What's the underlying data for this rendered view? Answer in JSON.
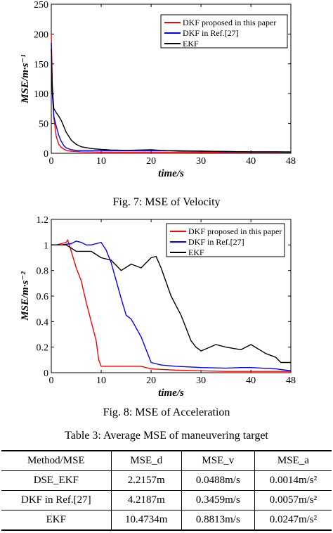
{
  "chart_data": [
    {
      "type": "line",
      "title": "",
      "xlabel": "time/s",
      "ylabel": "MSE/m·s⁻¹",
      "xlim": [
        0,
        48
      ],
      "ylim": [
        0,
        250
      ],
      "xticks": [
        0,
        10,
        20,
        30,
        40,
        48
      ],
      "yticks": [
        0,
        50,
        100,
        150,
        200,
        250
      ],
      "grid": false,
      "legend_position": "top-right",
      "series": [
        {
          "name": "DKF proposed in this paper",
          "color": "#ff0000",
          "x": [
            0,
            0.2,
            0.5,
            1,
            1.5,
            2,
            2.5,
            3,
            4,
            5,
            6,
            8,
            10,
            15,
            20,
            25,
            30,
            35,
            40,
            48
          ],
          "y": [
            200,
            120,
            60,
            28,
            15,
            10,
            7,
            5,
            3.5,
            3,
            2.5,
            2.2,
            2,
            2,
            2,
            2,
            1.8,
            1.8,
            1.8,
            1.8
          ]
        },
        {
          "name": "DKF in Ref.[27]",
          "color": "#0000ff",
          "x": [
            0,
            0.2,
            0.5,
            1,
            1.5,
            2,
            2.5,
            3,
            4,
            5,
            6,
            8,
            10,
            15,
            20,
            25,
            30,
            35,
            40,
            48
          ],
          "y": [
            185,
            100,
            62,
            45,
            30,
            20,
            13,
            9,
            6,
            5,
            4.5,
            4.5,
            4.5,
            4.5,
            4.5,
            4.5,
            3.5,
            3,
            2.5,
            2.5
          ]
        },
        {
          "name": "EKF",
          "color": "#000000",
          "x": [
            0,
            0.2,
            0.5,
            1,
            1.5,
            2,
            2.5,
            3,
            4,
            5,
            6,
            8,
            10,
            12,
            15,
            18,
            20,
            22,
            25,
            30,
            35,
            40,
            45,
            48
          ],
          "y": [
            175,
            110,
            75,
            68,
            62,
            55,
            45,
            35,
            22,
            15,
            11,
            8,
            6.5,
            5.5,
            5,
            5.5,
            6,
            5,
            4,
            3.5,
            3,
            2.5,
            2.5,
            2
          ]
        }
      ]
    },
    {
      "type": "line",
      "title": "",
      "xlabel": "time/s",
      "ylabel": "MSE/m·s⁻²",
      "xlim": [
        0,
        48
      ],
      "ylim": [
        0,
        1.2
      ],
      "xticks": [
        0,
        10,
        20,
        30,
        40,
        48
      ],
      "yticks": [
        0,
        0.2,
        0.4,
        0.6,
        0.8,
        1,
        1.2
      ],
      "grid": false,
      "legend_position": "top-right",
      "series": [
        {
          "name": "DKF proposed in this paper",
          "color": "#ff0000",
          "x": [
            0,
            1,
            2,
            3,
            3.3,
            4,
            5,
            6,
            7,
            8,
            9,
            9.5,
            10,
            12,
            15,
            18,
            20,
            25,
            30,
            35,
            40,
            45,
            48
          ],
          "y": [
            1,
            1,
            1.01,
            1.02,
            1.04,
            0.95,
            0.82,
            0.72,
            0.55,
            0.4,
            0.25,
            0.1,
            0.05,
            0.05,
            0.05,
            0.05,
            0.03,
            0.02,
            0.015,
            0.01,
            0.01,
            0.01,
            0.01
          ]
        },
        {
          "name": "DKF in Ref.[27]",
          "color": "#0000ff",
          "x": [
            0,
            2,
            4,
            5,
            6,
            7,
            8,
            9,
            10,
            11,
            12,
            13,
            14,
            15,
            16,
            17,
            18,
            19,
            20,
            22,
            25,
            30,
            35,
            38,
            40,
            45,
            48
          ],
          "y": [
            1,
            1,
            1.01,
            1.03,
            1.02,
            1.0,
            1.0,
            1.01,
            1.02,
            0.96,
            0.86,
            0.72,
            0.58,
            0.45,
            0.42,
            0.35,
            0.28,
            0.18,
            0.08,
            0.06,
            0.05,
            0.04,
            0.035,
            0.04,
            0.04,
            0.03,
            0.015
          ]
        },
        {
          "name": "EKF",
          "color": "#000000",
          "x": [
            0,
            3,
            5,
            8,
            10,
            12,
            14,
            16,
            18,
            20,
            21,
            22,
            24,
            26,
            27,
            28,
            29,
            30,
            33,
            35,
            38,
            40,
            43,
            45,
            46,
            48
          ],
          "y": [
            1,
            1,
            0.95,
            0.95,
            0.9,
            0.88,
            0.8,
            0.85,
            0.82,
            0.9,
            0.91,
            0.82,
            0.6,
            0.45,
            0.35,
            0.25,
            0.2,
            0.17,
            0.22,
            0.2,
            0.18,
            0.22,
            0.15,
            0.12,
            0.08,
            0.08
          ]
        }
      ]
    }
  ],
  "captions": {
    "fig7": "Fig. 7: MSE of Velocity",
    "fig8": "Fig. 8: MSE of Acceleration",
    "table3": "Table 3: Average MSE of maneuvering target"
  },
  "table": {
    "headers": [
      "Method/MSE",
      "MSE_d",
      "MSE_v",
      "MSE_a"
    ],
    "rows": [
      [
        "DSE_EKF",
        "2.2157m",
        "0.0488m/s",
        "0.0014m/s²"
      ],
      [
        "DKF in Ref.[27]",
        "4.2187m",
        "0.3459m/s",
        "0.0057m/s²"
      ],
      [
        "EKF",
        "10.4734m",
        "0.8813m/s",
        "0.0247m/s²"
      ]
    ]
  }
}
